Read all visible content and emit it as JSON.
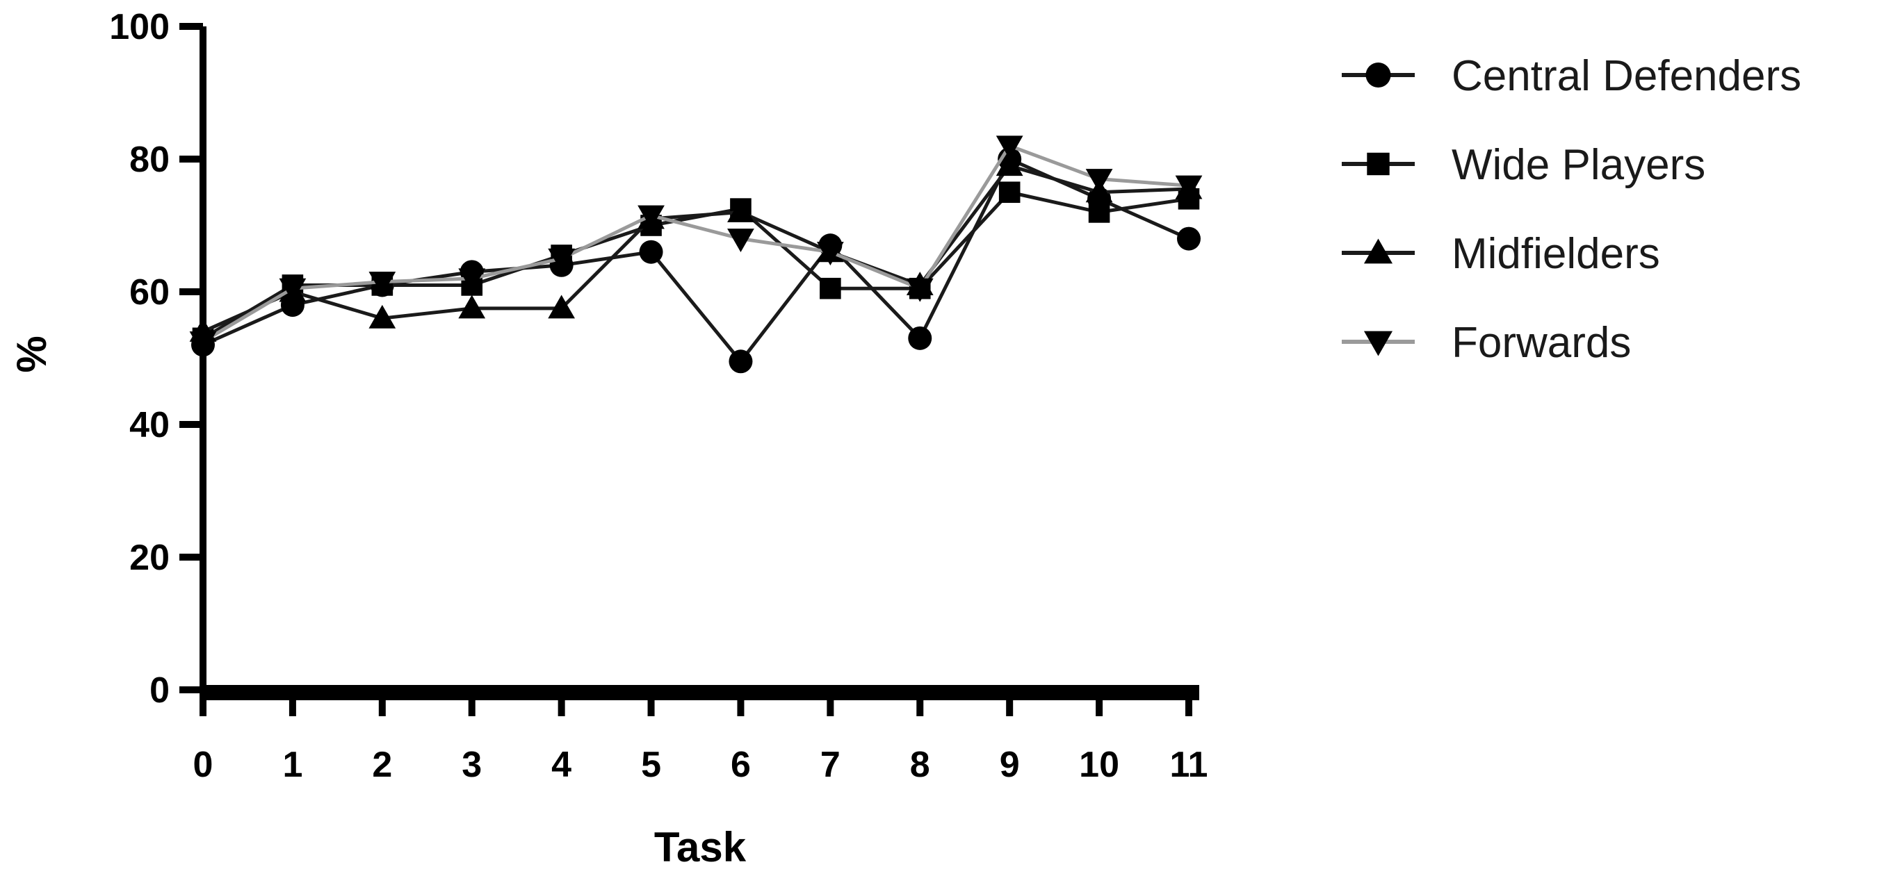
{
  "chart_data": {
    "type": "line",
    "title": "",
    "xlabel": "Task",
    "ylabel": "%",
    "x": [
      0,
      1,
      2,
      3,
      4,
      5,
      6,
      7,
      8,
      9,
      10,
      11
    ],
    "xlim": [
      0,
      11
    ],
    "ylim": [
      0,
      100
    ],
    "xticks": [
      "0",
      "1",
      "2",
      "3",
      "4",
      "5",
      "6",
      "7",
      "8",
      "9",
      "10",
      "11"
    ],
    "yticks": [
      "0",
      "20",
      "40",
      "60",
      "80",
      "100"
    ],
    "grid": false,
    "legend_position": "right",
    "series": [
      {
        "name": "Central Defenders",
        "marker": "circle",
        "line_color": "#1a1a1a",
        "values": [
          52,
          58,
          61,
          63,
          64,
          66,
          49.5,
          67,
          53,
          80,
          74,
          68
        ]
      },
      {
        "name": "Wide Players",
        "marker": "square",
        "line_color": "#1a1a1a",
        "values": [
          53,
          61,
          61,
          61,
          65.5,
          70,
          72.5,
          60.5,
          60.5,
          75,
          72,
          74
        ]
      },
      {
        "name": "Midfielders",
        "marker": "triangle-up",
        "line_color": "#1a1a1a",
        "values": [
          54,
          60,
          56,
          57.5,
          57.5,
          71,
          72,
          66,
          61,
          79,
          75,
          75.5
        ]
      },
      {
        "name": "Forwards",
        "marker": "triangle-down",
        "line_color": "#9a9a9a",
        "values": [
          52.5,
          60.5,
          61.5,
          62,
          65,
          71.5,
          68,
          66,
          60.5,
          82,
          77,
          76
        ]
      }
    ]
  }
}
